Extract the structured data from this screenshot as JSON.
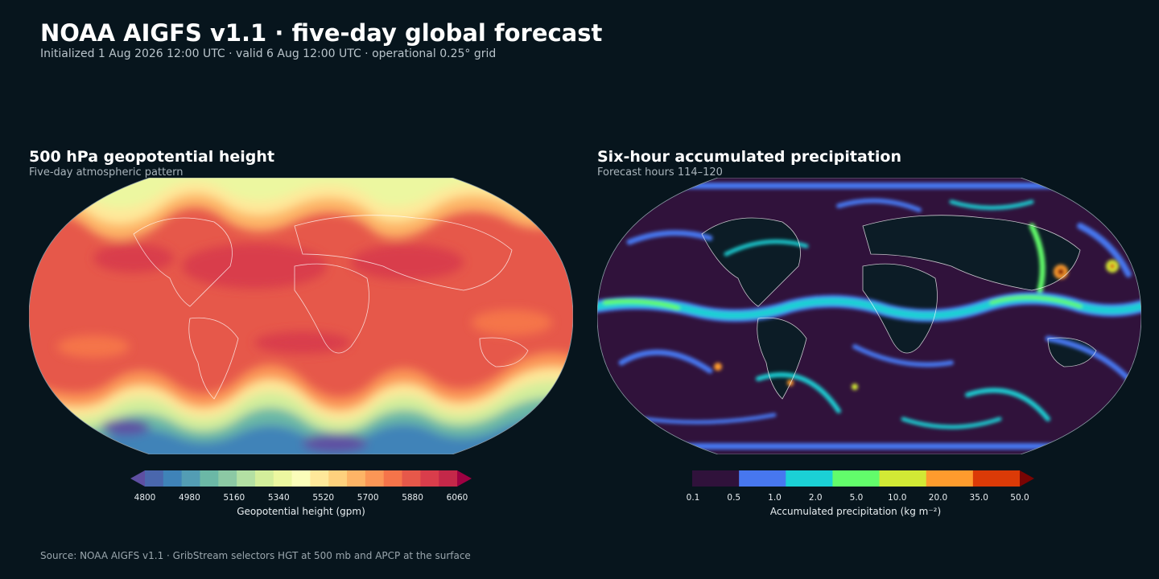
{
  "header": {
    "title": "NOAA AIGFS v1.1 · five-day global forecast",
    "subtitle": "Initialized 1 Aug 2026 12:00 UTC · valid 6 Aug 12:00 UTC · operational 0.25° grid"
  },
  "panels": [
    {
      "title": "500 hPa geopotential height",
      "subtitle": "Five-day atmospheric pattern",
      "colorbar": {
        "label": "Geopotential height (gpm)",
        "ticks": [
          "4800",
          "4980",
          "5160",
          "5340",
          "5520",
          "5700",
          "5880",
          "6060"
        ],
        "colors": [
          "#5e4fa2",
          "#4a67ad",
          "#3f83b8",
          "#539db4",
          "#6bb8a6",
          "#8cc9a4",
          "#b3e0a3",
          "#d3ee9b",
          "#ecf7a0",
          "#fbfdba",
          "#fee89a",
          "#fed17d",
          "#fdb466",
          "#fb9656",
          "#f5744a",
          "#e6584a",
          "#d93d4b",
          "#c42849",
          "#9e0142"
        ],
        "extend": "both"
      },
      "field_palette": [
        "#5e4fa2",
        "#3f83b8",
        "#6bb8a6",
        "#b3e0a3",
        "#ecf7a0",
        "#fee89a",
        "#fdb466",
        "#f5744a",
        "#e6584a",
        "#d93d4b"
      ]
    },
    {
      "title": "Six-hour accumulated precipitation",
      "subtitle": "Forecast hours 114–120",
      "colorbar": {
        "label": "Accumulated precipitation (kg m⁻²)",
        "ticks": [
          "0.1",
          "0.5",
          "1.0",
          "2.0",
          "5.0",
          "10.0",
          "20.0",
          "35.0",
          "50.0"
        ],
        "colors": [
          "#30123b",
          "#4777ef",
          "#1bd0d5",
          "#62fc6b",
          "#d2e935",
          "#fe9b2d",
          "#db3a07",
          "#7a0403"
        ],
        "extend": "max"
      },
      "field_palette": [
        "#30123b",
        "#4777ef",
        "#1bd0d5",
        "#62fc6b",
        "#d2e935",
        "#fe9b2d",
        "#db3a07",
        "#7a0403"
      ]
    }
  ],
  "footer": "Source: NOAA AIGFS v1.1 · GribStream selectors HGT at 500 mb and APCP at the surface"
}
